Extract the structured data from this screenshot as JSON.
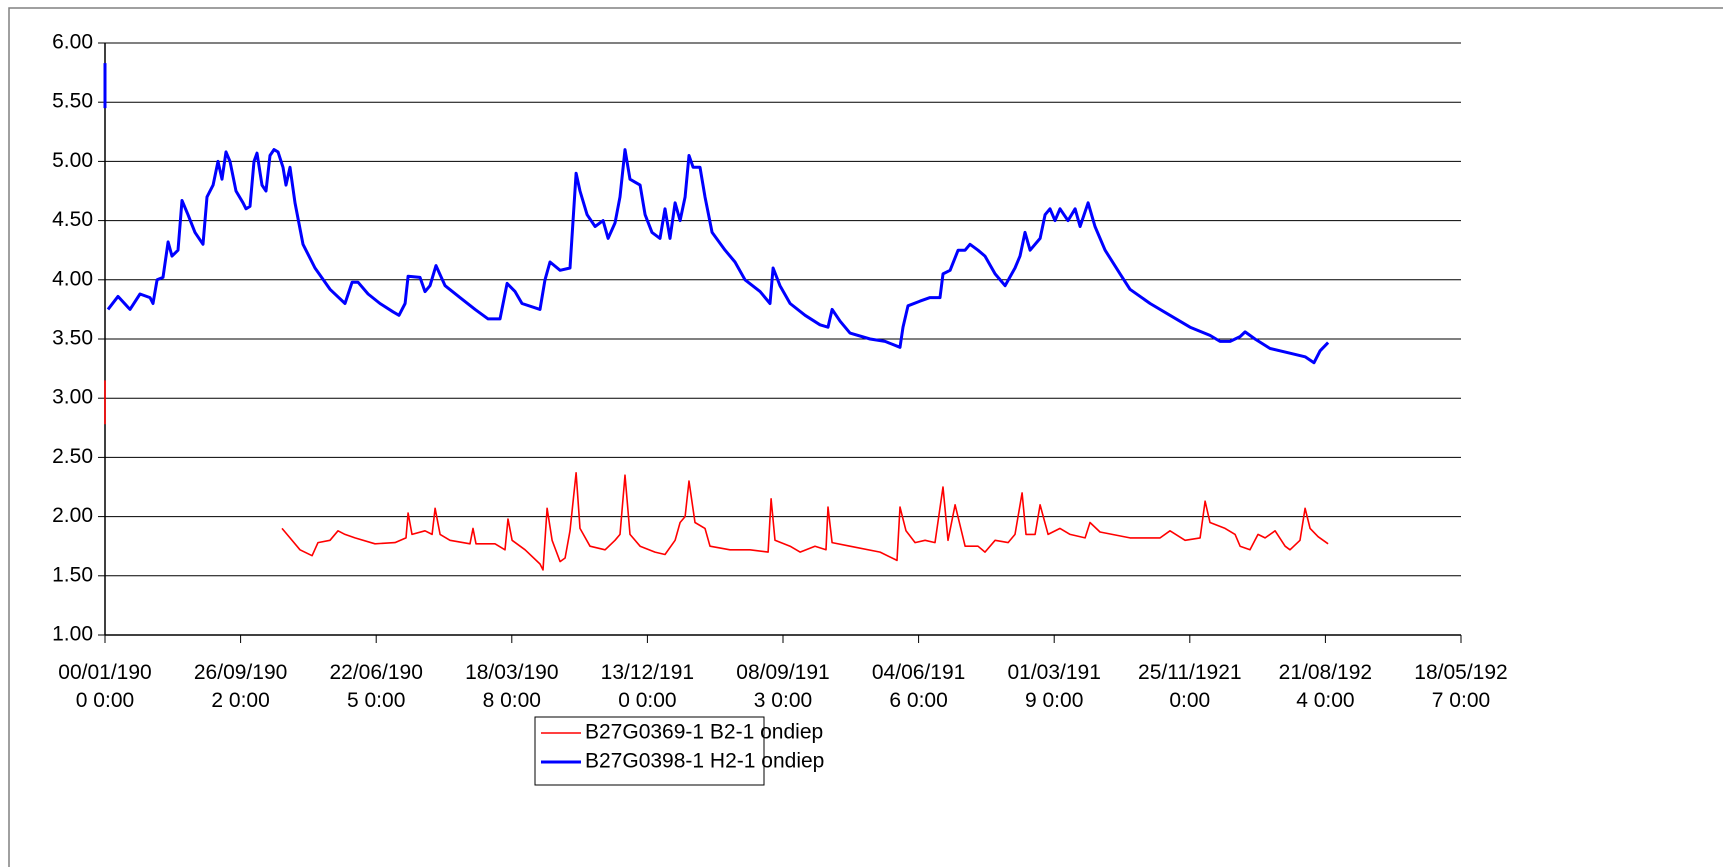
{
  "chart_data": {
    "type": "line",
    "legend": "bottom",
    "grid": true,
    "ylim": [
      1,
      6
    ],
    "yticks": [
      {
        "value": 1,
        "label": "1.00"
      },
      {
        "value": 1.5,
        "label": "1.50"
      },
      {
        "value": 2,
        "label": "2.00"
      },
      {
        "value": 2.5,
        "label": "2.50"
      },
      {
        "value": 3,
        "label": "3.00"
      },
      {
        "value": 3.5,
        "label": "3.50"
      },
      {
        "value": 4,
        "label": "4.00"
      },
      {
        "value": 4.5,
        "label": "4.50"
      },
      {
        "value": 5,
        "label": "5.00"
      },
      {
        "value": 5.5,
        "label": "5.50"
      },
      {
        "value": 6,
        "label": "6.00"
      }
    ],
    "xlim": [
      0,
      10000
    ],
    "xticks": [
      {
        "value": 0,
        "label": "00/01/1900 0:00"
      },
      {
        "value": 1000,
        "label": "26/09/1902 0:00"
      },
      {
        "value": 2000,
        "label": "22/06/1905 0:00"
      },
      {
        "value": 3000,
        "label": "18/03/1908 0:00"
      },
      {
        "value": 4000,
        "label": "13/12/1910 0:00"
      },
      {
        "value": 5000,
        "label": "08/09/1913 0:00"
      },
      {
        "value": 6000,
        "label": "04/06/1916 0:00"
      },
      {
        "value": 7000,
        "label": "01/03/1919 0:00"
      },
      {
        "value": 8000,
        "label": "25/11/1921 0:00"
      },
      {
        "value": 9000,
        "label": "21/08/1924 0:00"
      },
      {
        "value": 10000,
        "label": "18/05/1927 0:00"
      }
    ],
    "series": [
      {
        "name": "B27G0369-1 B2-1 ondiep",
        "color": "#ff0000",
        "x": [
          0,
          0,
          10,
          1305,
          1364,
          1438,
          1527,
          1571,
          1659,
          1718,
          1770,
          1844,
          1991,
          2139,
          2220,
          2235,
          2264,
          2360,
          2412,
          2434,
          2471,
          2544,
          2692,
          2714,
          2736,
          2876,
          2950,
          2972,
          3002,
          3098,
          3208,
          3230,
          3260,
          3297,
          3356,
          3393,
          3429,
          3474,
          3503,
          3577,
          3688,
          3761,
          3798,
          3835,
          3872,
          3946,
          4056,
          4130,
          4204,
          4241,
          4278,
          4307,
          4351,
          4425,
          4462,
          4609,
          4757,
          4890,
          4912,
          4941,
          5052,
          5126,
          5236,
          5317,
          5332,
          5362,
          5494,
          5716,
          5841,
          5863,
          5907,
          5974,
          6048,
          6121,
          6180,
          6217,
          6269,
          6343,
          6438,
          6490,
          6564,
          6660,
          6711,
          6763,
          6792,
          6859,
          6896,
          6955,
          7043,
          7117,
          7228,
          7264,
          7338,
          7559,
          7781,
          7854,
          7965,
          8076,
          8113,
          8149,
          8260,
          8334,
          8371,
          8444,
          8503,
          8555,
          8629,
          8703,
          8739,
          8813,
          8850,
          8887,
          8946,
          9020
        ],
        "values": [
          3.15,
          2.78,
          null,
          1.9,
          1.82,
          1.72,
          1.67,
          1.78,
          1.8,
          1.88,
          1.85,
          1.82,
          1.77,
          1.78,
          1.82,
          2.03,
          1.85,
          1.88,
          1.85,
          2.07,
          1.85,
          1.8,
          1.77,
          1.9,
          1.77,
          1.77,
          1.72,
          1.98,
          1.8,
          1.72,
          1.6,
          1.55,
          2.07,
          1.8,
          1.62,
          1.65,
          1.88,
          2.37,
          1.9,
          1.75,
          1.72,
          1.8,
          1.85,
          2.35,
          1.85,
          1.75,
          1.7,
          1.68,
          1.8,
          1.95,
          2.0,
          2.3,
          1.95,
          1.9,
          1.75,
          1.72,
          1.72,
          1.7,
          2.15,
          1.8,
          1.75,
          1.7,
          1.75,
          1.72,
          2.08,
          1.78,
          1.75,
          1.7,
          1.63,
          2.08,
          1.88,
          1.78,
          1.8,
          1.78,
          2.25,
          1.8,
          2.1,
          1.75,
          1.75,
          1.7,
          1.8,
          1.78,
          1.85,
          2.2,
          1.85,
          1.85,
          2.1,
          1.85,
          1.9,
          1.85,
          1.82,
          1.95,
          1.87,
          1.82,
          1.82,
          1.88,
          1.8,
          1.82,
          2.13,
          1.95,
          1.9,
          1.85,
          1.75,
          1.72,
          1.85,
          1.82,
          1.88,
          1.75,
          1.72,
          1.8,
          2.07,
          1.9,
          1.83,
          1.77
        ]
      },
      {
        "name": "B27G0398-1 H2-1 ondiep",
        "color": "#0000ff",
        "x": [
          0,
          0,
          11,
          22,
          96,
          184,
          258,
          332,
          354,
          384,
          428,
          465,
          494,
          538,
          568,
          612,
          664,
          723,
          752,
          797,
          833,
          863,
          892,
          922,
          966,
          1018,
          1040,
          1069,
          1099,
          1121,
          1158,
          1187,
          1217,
          1246,
          1276,
          1313,
          1335,
          1364,
          1401,
          1460,
          1549,
          1659,
          1770,
          1822,
          1866,
          1940,
          2028,
          2124,
          2168,
          2213,
          2235,
          2323,
          2360,
          2397,
          2441,
          2508,
          2618,
          2729,
          2825,
          2913,
          2965,
          3024,
          3075,
          3208,
          3245,
          3282,
          3356,
          3429,
          3474,
          3503,
          3555,
          3614,
          3673,
          3710,
          3761,
          3798,
          3835,
          3872,
          3946,
          3983,
          4034,
          4093,
          4130,
          4167,
          4204,
          4241,
          4278,
          4307,
          4337,
          4388,
          4425,
          4477,
          4573,
          4646,
          4720,
          4831,
          4904,
          4927,
          4978,
          5052,
          5163,
          5273,
          5332,
          5362,
          5421,
          5494,
          5642,
          5753,
          5863,
          5885,
          5922,
          6011,
          6084,
          6158,
          6180,
          6232,
          6291,
          6343,
          6379,
          6438,
          6490,
          6564,
          6638,
          6711,
          6748,
          6785,
          6822,
          6896,
          6933,
          6969,
          7006,
          7043,
          7102,
          7154,
          7191,
          7250,
          7301,
          7375,
          7486,
          7559,
          7707,
          7854,
          8002,
          8149,
          8223,
          8297,
          8371,
          8408,
          8481,
          8592,
          8739,
          8850,
          8916,
          8961,
          9020
        ],
        "values": [
          5.83,
          5.45,
          null,
          3.75,
          3.86,
          3.75,
          3.88,
          3.85,
          3.8,
          4.0,
          4.02,
          4.32,
          4.2,
          4.25,
          4.67,
          4.55,
          4.4,
          4.3,
          4.7,
          4.8,
          5.0,
          4.85,
          5.08,
          5.0,
          4.75,
          4.65,
          4.6,
          4.62,
          5.0,
          5.07,
          4.8,
          4.75,
          5.05,
          5.1,
          5.08,
          4.95,
          4.8,
          4.95,
          4.65,
          4.3,
          4.1,
          3.92,
          3.8,
          3.98,
          3.98,
          3.88,
          3.8,
          3.73,
          3.7,
          3.8,
          4.03,
          4.02,
          3.9,
          3.95,
          4.12,
          3.95,
          3.85,
          3.75,
          3.67,
          3.67,
          3.97,
          3.9,
          3.8,
          3.75,
          4.0,
          4.15,
          4.08,
          4.1,
          4.9,
          4.75,
          4.55,
          4.45,
          4.5,
          4.35,
          4.48,
          4.7,
          5.1,
          4.85,
          4.8,
          4.55,
          4.4,
          4.35,
          4.6,
          4.35,
          4.65,
          4.5,
          4.7,
          5.05,
          4.95,
          4.95,
          4.7,
          4.4,
          4.25,
          4.15,
          4.0,
          3.9,
          3.8,
          4.1,
          3.95,
          3.8,
          3.7,
          3.62,
          3.6,
          3.75,
          3.65,
          3.55,
          3.5,
          3.48,
          3.43,
          3.6,
          3.78,
          3.82,
          3.85,
          3.85,
          4.05,
          4.08,
          4.25,
          4.25,
          4.3,
          4.25,
          4.2,
          4.05,
          3.95,
          4.1,
          4.2,
          4.4,
          4.25,
          4.35,
          4.55,
          4.6,
          4.5,
          4.6,
          4.5,
          4.6,
          4.45,
          4.65,
          4.45,
          4.25,
          4.05,
          3.92,
          3.8,
          3.7,
          3.6,
          3.53,
          3.48,
          3.48,
          3.52,
          3.56,
          3.5,
          3.42,
          3.38,
          3.35,
          3.3,
          3.4,
          3.47
        ]
      }
    ]
  }
}
